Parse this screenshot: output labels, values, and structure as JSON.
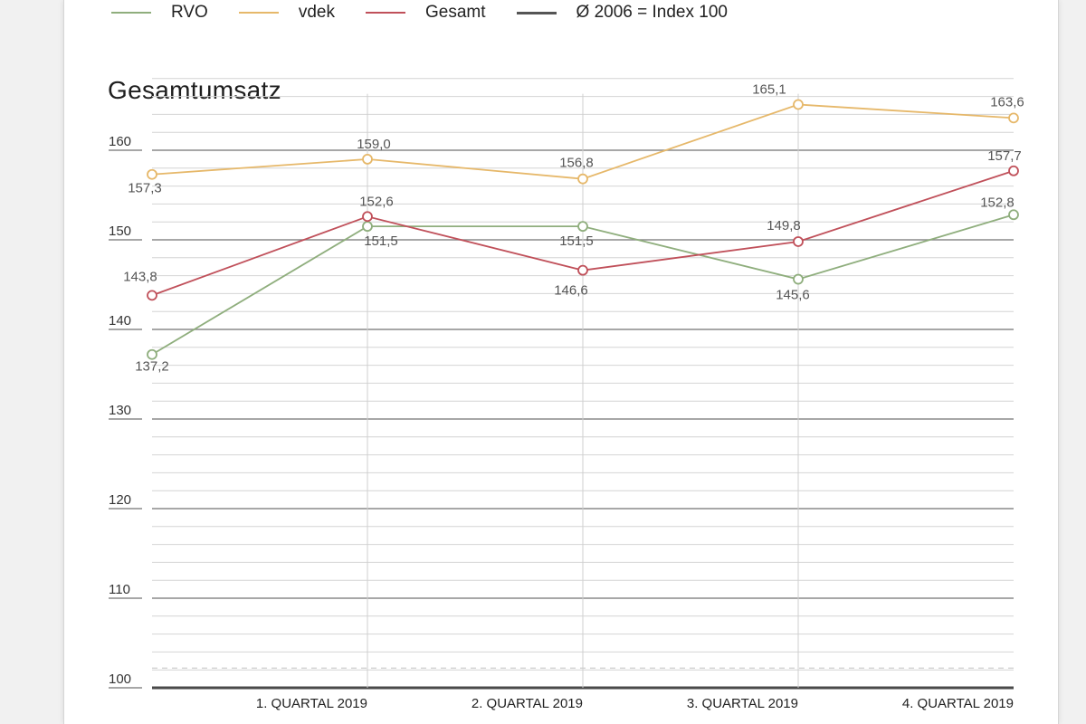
{
  "legend": [
    {
      "label": "RVO",
      "color": "#8fae7d"
    },
    {
      "label": "vdek",
      "color": "#e6b86a"
    },
    {
      "label": "Gesamt",
      "color": "#c0505a"
    },
    {
      "label": "Ø 2006 = Index 100",
      "color": "#555555"
    }
  ],
  "chart_data": {
    "type": "line",
    "title": "Gesamtumsatz",
    "categories": [
      "",
      "1. QUARTAL 2019",
      "2. QUARTAL 2019",
      "3. QUARTAL 2019",
      "4. QUARTAL 2019"
    ],
    "series": [
      {
        "name": "RVO",
        "color": "#8fae7d",
        "values": [
          137.2,
          151.5,
          151.5,
          145.6,
          152.8
        ],
        "labels": [
          "137,2",
          "151,5",
          "151,5",
          "145,6",
          "152,8"
        ]
      },
      {
        "name": "vdek",
        "color": "#e6b86a",
        "values": [
          157.3,
          159.0,
          156.8,
          165.1,
          163.6
        ],
        "labels": [
          "157,3",
          "159,0",
          "156,8",
          "165,1",
          "163,6"
        ]
      },
      {
        "name": "Gesamt",
        "color": "#c0505a",
        "values": [
          143.8,
          152.6,
          146.6,
          149.8,
          157.7
        ],
        "labels": [
          "143,8",
          "152,6",
          "146,6",
          "149,8",
          "157,7"
        ]
      }
    ],
    "yticks": [
      100,
      110,
      120,
      130,
      140,
      150,
      160
    ],
    "ylim": [
      100,
      168
    ],
    "reference_line": 100,
    "grid": true,
    "legend_position": "top"
  }
}
